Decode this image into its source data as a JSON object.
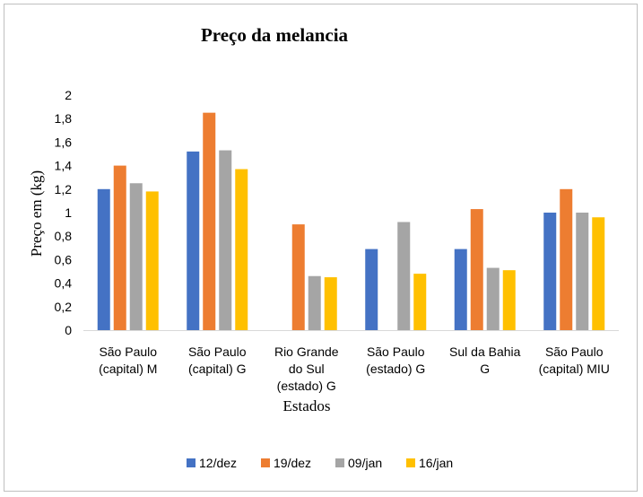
{
  "chart_data": {
    "type": "bar",
    "title": "Preço da melancia",
    "ylabel": "Preço em (kg)",
    "xlabel": "Estados",
    "ylim": [
      0,
      2
    ],
    "yticks": [
      "0",
      "0,2",
      "0,4",
      "0,6",
      "0,8",
      "1",
      "1,2",
      "1,4",
      "1,6",
      "1,8",
      "2"
    ],
    "grid": false,
    "legend_position": "bottom",
    "categories": [
      [
        "São Paulo",
        "(capital) M"
      ],
      [
        "São Paulo",
        "(capital) G"
      ],
      [
        "Rio Grande",
        "do Sul",
        "(estado) G"
      ],
      [
        "São Paulo",
        "(estado) G"
      ],
      [
        "Sul da Bahia",
        "G"
      ],
      [
        "São Paulo",
        "(capital) MIU"
      ]
    ],
    "series": [
      {
        "name": "12/dez",
        "color": "#4472c4",
        "values": [
          1.2,
          1.52,
          null,
          0.69,
          0.69,
          1.0
        ]
      },
      {
        "name": "19/dez",
        "color": "#ed7d31",
        "values": [
          1.4,
          1.85,
          0.9,
          null,
          1.03,
          1.2
        ]
      },
      {
        "name": "09/jan",
        "color": "#a5a5a5",
        "values": [
          1.25,
          1.53,
          0.46,
          0.92,
          0.53,
          1.0
        ]
      },
      {
        "name": "16/jan",
        "color": "#ffc000",
        "values": [
          1.18,
          1.37,
          0.45,
          0.48,
          0.51,
          0.96
        ]
      }
    ]
  }
}
